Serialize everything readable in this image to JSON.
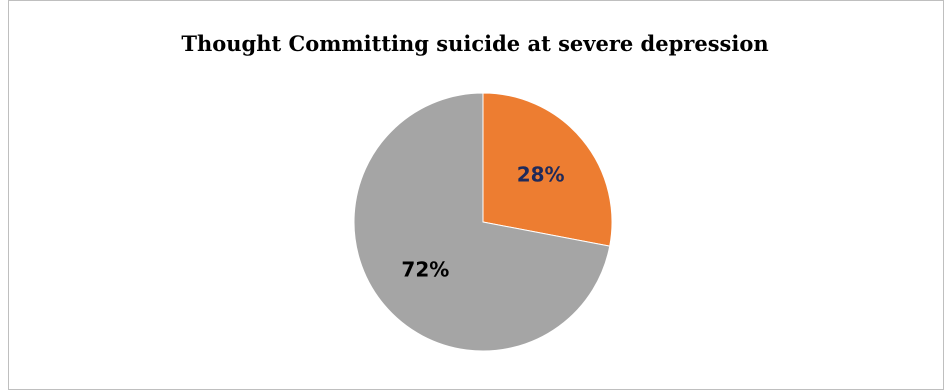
{
  "chart_data": {
    "type": "pie",
    "title": "Thought Committing suicide at severe depression",
    "slices": [
      {
        "value": 28,
        "label": "28%",
        "color": "#ed7d31",
        "label_color": "#1f2a5a"
      },
      {
        "value": 72,
        "label": "72%",
        "color": "#a5a5a5",
        "label_color": "#000000"
      }
    ],
    "start_angle_deg": 0,
    "direction": "clockwise",
    "legend": "none"
  }
}
